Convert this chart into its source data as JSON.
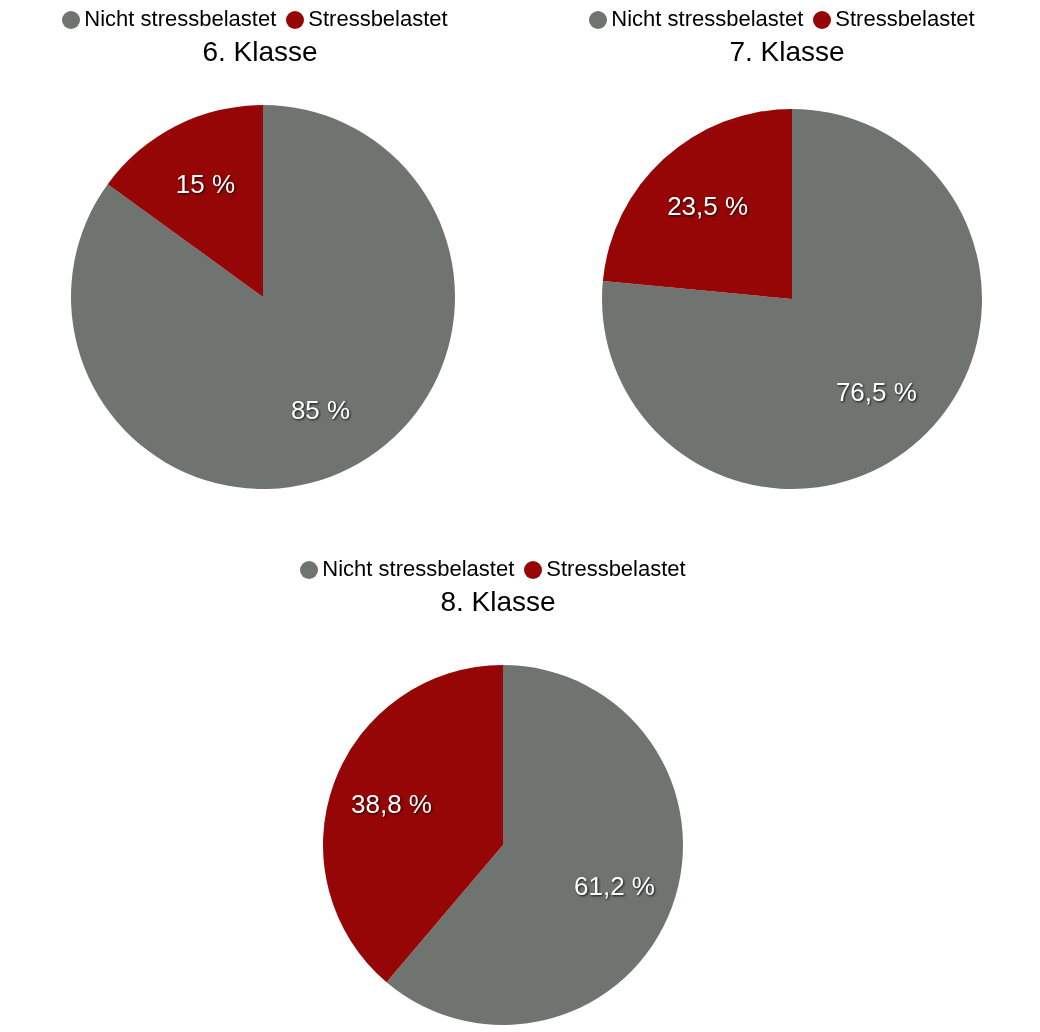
{
  "chart_data": [
    {
      "type": "pie",
      "title": "6. Klasse",
      "categories": [
        "Nicht stressbelastet",
        "Stressbelastet"
      ],
      "values": [
        85,
        15
      ],
      "colors": [
        "#6f7471",
        "#960606"
      ],
      "value_labels": [
        "85 %",
        "15 %"
      ],
      "legend": "top"
    },
    {
      "type": "pie",
      "title": "7. Klasse",
      "categories": [
        "Nicht stressbelastet",
        "Stressbelastet"
      ],
      "values": [
        76.5,
        23.5
      ],
      "colors": [
        "#6f7471",
        "#960606"
      ],
      "value_labels": [
        "76,5 %",
        "23,5 %"
      ],
      "legend": "top"
    },
    {
      "type": "pie",
      "title": "8. Klasse",
      "categories": [
        "Nicht stressbelastet",
        "Stressbelastet"
      ],
      "values": [
        61.2,
        38.8
      ],
      "colors": [
        "#6f7471",
        "#960606"
      ],
      "value_labels": [
        "61,2 %",
        "38,8 %"
      ],
      "legend": "top"
    }
  ]
}
